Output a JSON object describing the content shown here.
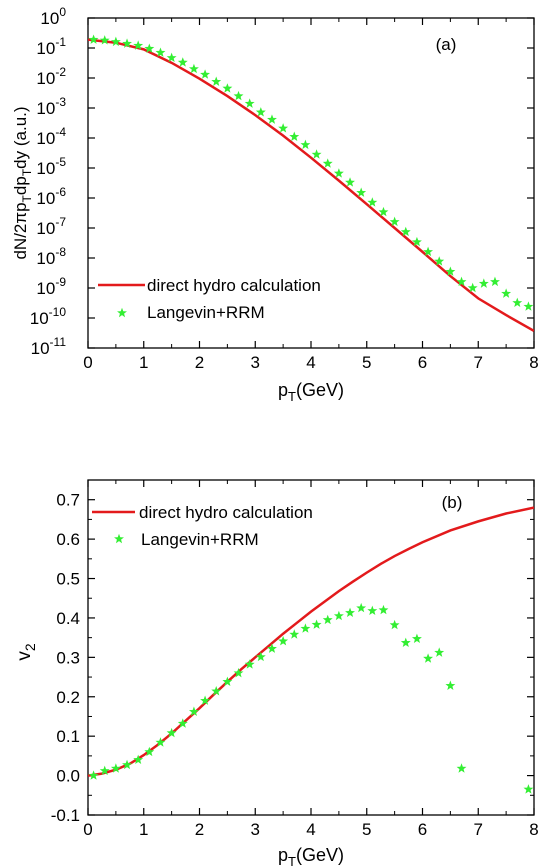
{
  "chart_data": [
    {
      "type": "line",
      "panel_label": "(a)",
      "xlabel": "p",
      "xlabel_sub": "T",
      "xlabel_suffix": "(GeV)",
      "ylabel": "dN/2πp",
      "ylabel_sub1": "T",
      "ylabel_mid": "dp",
      "ylabel_sub2": "T",
      "ylabel_suffix": "dy (a.u.)",
      "xlim": [
        0,
        8
      ],
      "ylim_log10": [
        -11,
        0
      ],
      "yscale": "log",
      "x_ticks": [
        "0",
        "1",
        "2",
        "3",
        "4",
        "5",
        "6",
        "7",
        "8"
      ],
      "y_tick_exponents": [
        "0",
        "-1",
        "-2",
        "-3",
        "-4",
        "-5",
        "-6",
        "-7",
        "-8",
        "-9",
        "-10",
        "-11"
      ],
      "y_tick_base": "10",
      "legend_position": "bottom-left",
      "colors": {
        "line": "#e31a1c",
        "marker": "#33ee33"
      },
      "series": [
        {
          "name": "direct hydro calculation",
          "style": "line",
          "x": [
            0,
            0.5,
            1,
            1.5,
            2,
            2.5,
            3,
            3.5,
            4,
            4.5,
            5,
            5.5,
            6,
            6.5,
            7,
            7.5,
            8
          ],
          "y": [
            0.19,
            0.15,
            0.09,
            0.032,
            0.0095,
            0.0025,
            0.00058,
            0.00012,
            2.21e-05,
            3.8e-06,
            6.2e-07,
            1e-07,
            1.6e-08,
            2.5e-09,
            4.5e-10,
            1.25e-10,
            3.71e-11
          ]
        },
        {
          "name": "Langevin+RRM",
          "style": "star",
          "x": [
            0.1,
            0.3,
            0.5,
            0.7,
            0.9,
            1.1,
            1.3,
            1.5,
            1.7,
            1.9,
            2.1,
            2.3,
            2.5,
            2.7,
            2.9,
            3.1,
            3.3,
            3.5,
            3.7,
            3.9,
            4.1,
            4.3,
            4.5,
            4.7,
            4.9,
            5.1,
            5.3,
            5.5,
            5.7,
            5.9,
            6.1,
            6.3,
            6.5,
            6.7,
            6.9,
            7.1,
            7.3,
            7.5,
            7.7,
            7.9
          ],
          "y": [
            0.19,
            0.18,
            0.16,
            0.14,
            0.12,
            0.095,
            0.07,
            0.047,
            0.033,
            0.02,
            0.013,
            0.0075,
            0.0045,
            0.0025,
            0.0014,
            0.00072,
            0.00041,
            0.00021,
            0.00011,
            5.9e-05,
            2.82e-05,
            1.41e-05,
            6.6e-06,
            3.3e-06,
            1.5e-06,
            7.1e-07,
            3.4e-07,
            1.6e-07,
            7.4e-08,
            3.4e-08,
            1.6e-08,
            7.7e-09,
            3.5e-09,
            1.6e-09,
            1e-09,
            1.4e-09,
            1.6e-09,
            6.5e-10,
            3.2e-10,
            2.4e-10
          ]
        }
      ]
    },
    {
      "type": "line",
      "panel_label": "(b)",
      "xlabel": "p",
      "xlabel_sub": "T",
      "xlabel_suffix": "(GeV)",
      "ylabel": "v",
      "ylabel_sub": "2",
      "xlim": [
        0,
        8
      ],
      "ylim": [
        -0.1,
        0.75
      ],
      "x_ticks": [
        "0",
        "1",
        "2",
        "3",
        "4",
        "5",
        "6",
        "7",
        "8"
      ],
      "y_ticks": [
        "-0.1",
        "0.0",
        "0.1",
        "0.2",
        "0.3",
        "0.4",
        "0.5",
        "0.6",
        "0.7"
      ],
      "legend_position": "top-left",
      "colors": {
        "line": "#e31a1c",
        "marker": "#33ee33"
      },
      "series": [
        {
          "name": "direct hydro calculation",
          "style": "line",
          "x": [
            0,
            0.25,
            0.5,
            0.75,
            1,
            1.25,
            1.5,
            1.75,
            2,
            2.25,
            2.5,
            2.75,
            3,
            3.25,
            3.5,
            3.75,
            4,
            4.25,
            4.5,
            4.75,
            5,
            5.25,
            5.5,
            5.75,
            6,
            6.5,
            7,
            7.5,
            8
          ],
          "y": [
            0.0,
            0.005,
            0.015,
            0.03,
            0.052,
            0.078,
            0.107,
            0.139,
            0.171,
            0.205,
            0.238,
            0.27,
            0.3,
            0.33,
            0.36,
            0.388,
            0.416,
            0.442,
            0.468,
            0.492,
            0.515,
            0.537,
            0.557,
            0.575,
            0.592,
            0.622,
            0.645,
            0.665,
            0.68
          ]
        },
        {
          "name": "Langevin+RRM",
          "style": "star",
          "x": [
            0.1,
            0.3,
            0.5,
            0.7,
            0.9,
            1.1,
            1.3,
            1.5,
            1.7,
            1.9,
            2.1,
            2.3,
            2.5,
            2.7,
            2.9,
            3.1,
            3.3,
            3.5,
            3.7,
            3.9,
            4.1,
            4.3,
            4.5,
            4.7,
            4.9,
            5.1,
            5.3,
            5.5,
            5.7,
            5.9,
            6.1,
            6.3,
            6.5,
            6.7,
            7.9
          ],
          "y": [
            0.0,
            0.012,
            0.018,
            0.027,
            0.04,
            0.06,
            0.084,
            0.108,
            0.132,
            0.162,
            0.19,
            0.214,
            0.238,
            0.26,
            0.282,
            0.301,
            0.322,
            0.341,
            0.358,
            0.373,
            0.383,
            0.395,
            0.405,
            0.413,
            0.425,
            0.418,
            0.42,
            0.382,
            0.337,
            0.347,
            0.297,
            0.312,
            0.228,
            0.018,
            -0.035
          ]
        }
      ]
    }
  ]
}
